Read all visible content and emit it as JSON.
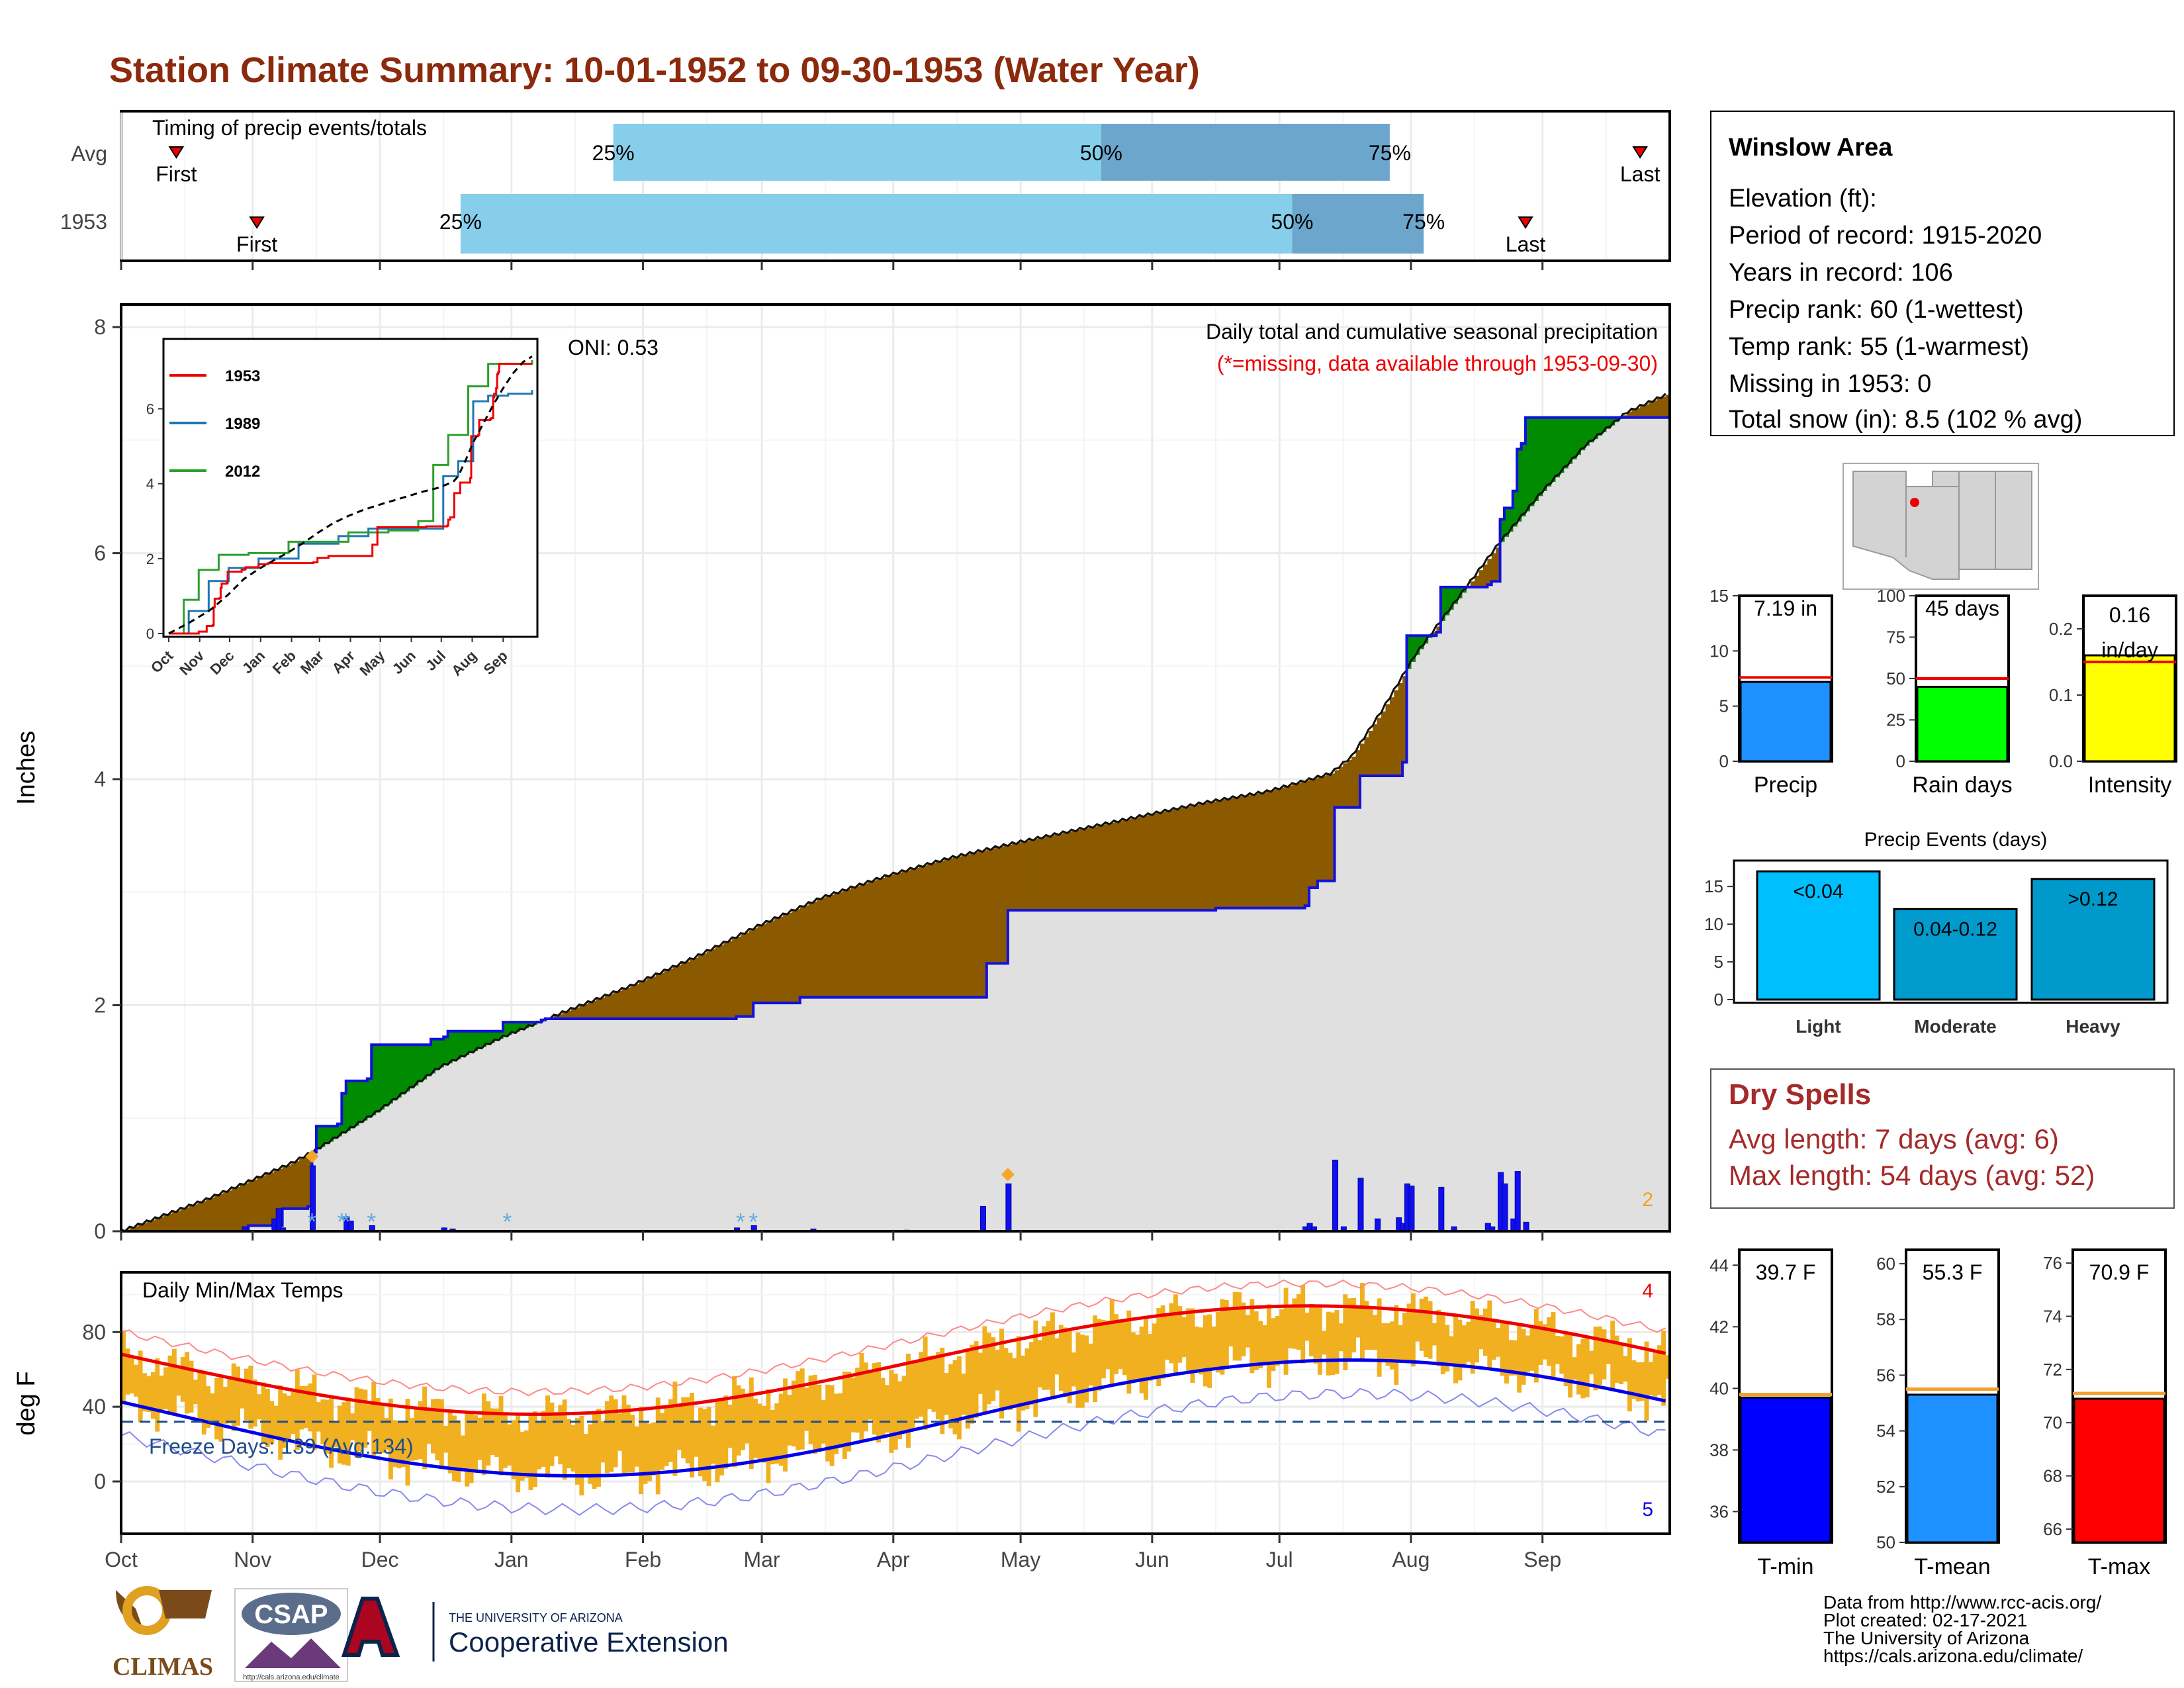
{
  "title": "Station Climate Summary: 10-01-1952 to 09-30-1953 (Water Year)",
  "colors": {
    "title": "#8B2A0C",
    "light_blue": "#87CEEB",
    "mid_blue": "#6CA6CD",
    "brown": "#8B5A00",
    "green": "#008B00",
    "gray_fill": "#E0E0E0",
    "cum_line": "#1010E0",
    "orange": "#F0B020",
    "red": "#EE0000",
    "blue": "#0000EE",
    "dark_red": "#A52A2A"
  },
  "timing": {
    "label": "Timing of precip events/totals",
    "rows": [
      {
        "name": "Avg",
        "first_label": "First",
        "first_day": 13,
        "last_label": "Last",
        "last_day": 358,
        "p25_day": 116,
        "p50_day": 231,
        "p75_day": 299,
        "p25_label": "25%",
        "p50_label": "50%",
        "p75_label": "75%"
      },
      {
        "name": "1953",
        "first_label": "First",
        "first_day": 32,
        "last_label": "Last",
        "last_day": 331,
        "p25_day": 80,
        "p50_day": 276,
        "p75_day": 307,
        "p25_label": "25%",
        "p50_label": "50%",
        "p75_label": "75%"
      }
    ]
  },
  "precip": {
    "header": "Daily total and cumulative seasonal precipitation",
    "subheader": "(*=missing, data available through 1953-09-30)",
    "oni": "ONI: 0.53",
    "ylabel": "Inches",
    "yticks": [
      "0",
      "2",
      "4",
      "6",
      "8"
    ],
    "corner_count": "2",
    "avg_cum": [
      [
        0,
        0
      ],
      [
        10,
        0.14
      ],
      [
        20,
        0.28
      ],
      [
        30,
        0.44
      ],
      [
        40,
        0.6
      ],
      [
        45,
        0.7
      ],
      [
        60,
        1.05
      ],
      [
        75,
        1.45
      ],
      [
        90,
        1.72
      ],
      [
        105,
        1.95
      ],
      [
        120,
        2.17
      ],
      [
        135,
        2.42
      ],
      [
        150,
        2.7
      ],
      [
        165,
        2.95
      ],
      [
        180,
        3.14
      ],
      [
        195,
        3.3
      ],
      [
        210,
        3.43
      ],
      [
        225,
        3.55
      ],
      [
        240,
        3.67
      ],
      [
        255,
        3.79
      ],
      [
        270,
        3.89
      ],
      [
        285,
        4.05
      ],
      [
        290,
        4.2
      ],
      [
        297,
        4.6
      ],
      [
        305,
        5.1
      ],
      [
        315,
        5.6
      ],
      [
        325,
        6.1
      ],
      [
        335,
        6.55
      ],
      [
        345,
        6.95
      ],
      [
        355,
        7.25
      ],
      [
        364,
        7.4
      ]
    ],
    "obs_cum": [
      [
        0,
        0
      ],
      [
        29,
        0
      ],
      [
        30,
        0.05
      ],
      [
        37,
        0.05
      ],
      [
        38,
        0.2
      ],
      [
        44,
        0.22
      ],
      [
        45,
        0.7
      ],
      [
        46,
        0.93
      ],
      [
        51,
        0.95
      ],
      [
        52,
        1.22
      ],
      [
        53,
        1.33
      ],
      [
        58,
        1.35
      ],
      [
        59,
        1.65
      ],
      [
        72,
        1.65
      ],
      [
        73,
        1.7
      ],
      [
        76,
        1.72
      ],
      [
        77,
        1.77
      ],
      [
        90,
        1.85
      ],
      [
        99,
        1.87
      ],
      [
        100,
        1.88
      ],
      [
        145,
        1.9
      ],
      [
        149,
        2.02
      ],
      [
        160,
        2.07
      ],
      [
        170,
        2.07
      ],
      [
        190,
        2.07
      ],
      [
        203,
        2.07
      ],
      [
        204,
        2.37
      ],
      [
        208,
        2.37
      ],
      [
        209,
        2.84
      ],
      [
        258,
        2.86
      ],
      [
        279,
        2.88
      ],
      [
        280,
        3.04
      ],
      [
        282,
        3.1
      ],
      [
        285,
        3.1
      ],
      [
        286,
        3.75
      ],
      [
        291,
        3.75
      ],
      [
        292,
        4.03
      ],
      [
        301,
        4.03
      ],
      [
        302,
        4.15
      ],
      [
        303,
        5.27
      ],
      [
        310,
        5.3
      ],
      [
        311,
        5.7
      ],
      [
        322,
        5.72
      ],
      [
        323,
        5.75
      ],
      [
        325,
        6.3
      ],
      [
        326,
        6.4
      ],
      [
        328,
        6.55
      ],
      [
        329,
        6.92
      ],
      [
        330,
        6.97
      ],
      [
        331,
        7.2
      ],
      [
        364,
        7.2
      ]
    ],
    "daily": [
      [
        29,
        0.04
      ],
      [
        36,
        0.11
      ],
      [
        37,
        0.2
      ],
      [
        38,
        0.03
      ],
      [
        45,
        0.58
      ],
      [
        53,
        0.13
      ],
      [
        54,
        0.09
      ],
      [
        59,
        0.05
      ],
      [
        76,
        0.03
      ],
      [
        78,
        0.02
      ],
      [
        145,
        0.03
      ],
      [
        149,
        0.05
      ],
      [
        163,
        0.02
      ],
      [
        185,
        0.01
      ],
      [
        203,
        0.22
      ],
      [
        209,
        0.42
      ],
      [
        279,
        0.04
      ],
      [
        280,
        0.07
      ],
      [
        281,
        0.04
      ],
      [
        286,
        0.63
      ],
      [
        288,
        0.04
      ],
      [
        292,
        0.47
      ],
      [
        296,
        0.11
      ],
      [
        301,
        0.12
      ],
      [
        302,
        0.07
      ],
      [
        303,
        0.42
      ],
      [
        304,
        0.4
      ],
      [
        311,
        0.39
      ],
      [
        314,
        0.04
      ],
      [
        322,
        0.07
      ],
      [
        323,
        0.04
      ],
      [
        325,
        0.52
      ],
      [
        326,
        0.42
      ],
      [
        328,
        0.11
      ],
      [
        329,
        0.53
      ],
      [
        331,
        0.08
      ]
    ],
    "missing_days": [
      45,
      209
    ],
    "snow_days": [
      45,
      52,
      53,
      59,
      91,
      146,
      149
    ]
  },
  "inset": {
    "series": [
      {
        "name": "1953",
        "color": "#EE0000"
      },
      {
        "name": "1989",
        "color": "#1F77B4"
      },
      {
        "name": "2012",
        "color": "#2CA02C"
      }
    ],
    "yticks": [
      "0",
      "2",
      "4",
      "6"
    ],
    "xticks": [
      "Oct",
      "Nov",
      "Dec",
      "Jan",
      "Feb",
      "Mar",
      "Apr",
      "May",
      "Jun",
      "Jul",
      "Aug",
      "Sep"
    ],
    "s1989": [
      [
        0,
        0
      ],
      [
        20,
        0.6
      ],
      [
        40,
        1.4
      ],
      [
        60,
        1.75
      ],
      [
        90,
        2.0
      ],
      [
        130,
        2.4
      ],
      [
        170,
        2.6
      ],
      [
        200,
        2.8
      ],
      [
        250,
        2.8
      ],
      [
        275,
        4.2
      ],
      [
        290,
        4.6
      ],
      [
        305,
        6.2
      ],
      [
        320,
        6.35
      ],
      [
        340,
        6.4
      ],
      [
        364,
        6.5
      ]
    ],
    "s2012": [
      [
        0,
        0
      ],
      [
        15,
        0.9
      ],
      [
        30,
        1.7
      ],
      [
        50,
        2.1
      ],
      [
        80,
        2.15
      ],
      [
        120,
        2.45
      ],
      [
        180,
        2.7
      ],
      [
        220,
        2.75
      ],
      [
        250,
        3.0
      ],
      [
        265,
        4.5
      ],
      [
        280,
        5.3
      ],
      [
        300,
        6.6
      ],
      [
        320,
        7.2
      ],
      [
        364,
        7.3
      ]
    ]
  },
  "temps": {
    "label": "Daily Min/Max Temps",
    "freeze": "Freeze Days: 139 (Avg:134)",
    "ylabel": "deg F",
    "yticks": [
      "0",
      "40",
      "80"
    ],
    "count_max": "4",
    "count_min": "5"
  },
  "months": [
    "Oct",
    "Nov",
    "Dec",
    "Jan",
    "Feb",
    "Mar",
    "Apr",
    "May",
    "Jun",
    "Jul",
    "Aug",
    "Sep"
  ],
  "month_days": [
    0,
    31,
    61,
    92,
    123,
    151,
    182,
    212,
    243,
    273,
    304,
    335
  ],
  "station": {
    "name": "Winslow Area",
    "lines": [
      "Elevation (ft):",
      "Period of record: 1915-2020",
      "Years in record: 106",
      "Precip rank: 60 (1-wettest)",
      "Temp rank: 55 (1-warmest)",
      "Missing in 1953: 0",
      "Total snow (in): 8.5 (102 % avg)"
    ]
  },
  "summary_bars": [
    {
      "label": "Precip",
      "value": 7.19,
      "avg": 7.6,
      "max": 15,
      "ticks": [
        0,
        5,
        10,
        15
      ],
      "text": "7.19 in",
      "color": "#1E90FF"
    },
    {
      "label": "Rain days",
      "value": 45,
      "avg": 50,
      "max": 100,
      "ticks": [
        0,
        25,
        50,
        75,
        100
      ],
      "text": "45 days",
      "color": "#00FF00"
    },
    {
      "label": "Intensity",
      "value": 0.16,
      "avg": 0.15,
      "max": 0.25,
      "ticks": [
        0.0,
        0.1,
        0.2
      ],
      "text": "0.16",
      "text2": "in/day",
      "color": "#FFFF00"
    }
  ],
  "events": {
    "title": "Precip Events (days)",
    "bars": [
      {
        "label": "Light",
        "value": 17,
        "text": "<0.04",
        "color": "#00BFFF"
      },
      {
        "label": "Moderate",
        "value": 12,
        "text": "0.04-0.12",
        "color": "#009ACD"
      },
      {
        "label": "Heavy",
        "value": 16,
        "text": ">0.12",
        "color": "#0099CC"
      }
    ],
    "ticks": [
      0,
      5,
      10,
      15
    ]
  },
  "dry": {
    "title": "Dry Spells",
    "avg": "Avg length: 7 days (avg: 6)",
    "max": "Max length: 54 days (avg: 52)"
  },
  "temp_bars": [
    {
      "label": "T-min",
      "value": 39.7,
      "avg": 39.8,
      "min": 35,
      "max": 44.5,
      "ticks": [
        36,
        38,
        40,
        42,
        44
      ],
      "text": "39.7 F",
      "color": "#0000FF"
    },
    {
      "label": "T-mean",
      "value": 55.3,
      "avg": 55.5,
      "min": 50,
      "max": 60.5,
      "ticks": [
        50,
        52,
        54,
        56,
        58,
        60
      ],
      "text": "55.3 F",
      "color": "#1E90FF"
    },
    {
      "label": "T-max",
      "value": 70.9,
      "avg": 71.1,
      "min": 65.5,
      "max": 76.5,
      "ticks": [
        66,
        68,
        70,
        72,
        74,
        76
      ],
      "text": "70.9 F",
      "color": "#FF0000"
    }
  ],
  "footer": [
    "Data from http://www.rcc-acis.org/",
    "Plot created: 02-17-2021",
    "The University of Arizona",
    "https://cals.arizona.edu/climate/"
  ],
  "logos": {
    "climas": "CLIMAS",
    "csap": "CSAP",
    "csap_url": "http://cals.arizona.edu/climate",
    "ua_line1": "THE UNIVERSITY OF ARIZONA",
    "ua_line2": "Cooperative Extension",
    "ua_letter": "A"
  }
}
